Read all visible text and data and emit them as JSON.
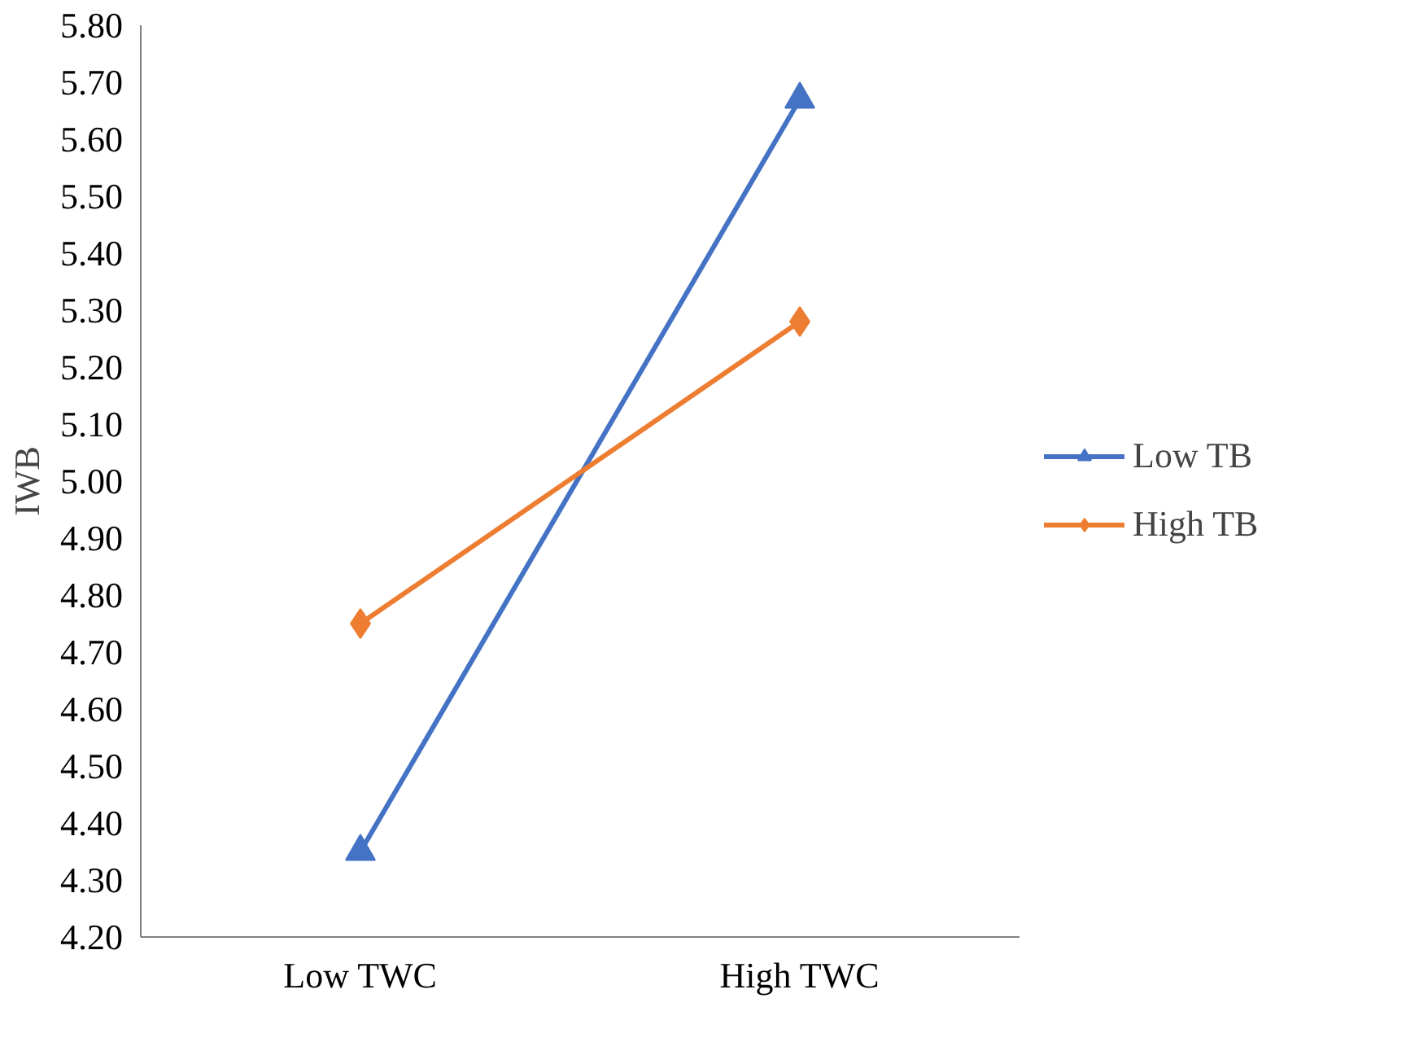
{
  "chart_data": {
    "type": "line",
    "ylabel": "IWB",
    "categories": [
      "Low TWC",
      "High TWC"
    ],
    "series": [
      {
        "name": "Low TB",
        "color": "#4472c4",
        "values": [
          4.35,
          5.67
        ],
        "marker": "triangle"
      },
      {
        "name": "High TB",
        "color": "#ed7d31",
        "values": [
          4.75,
          5.28
        ],
        "marker": "diamond"
      }
    ],
    "ylim": [
      4.2,
      5.8
    ],
    "yticks": [
      {
        "value": 4.2,
        "label": "4.20"
      },
      {
        "value": 4.3,
        "label": "4.30"
      },
      {
        "value": 4.4,
        "label": "4.40"
      },
      {
        "value": 4.5,
        "label": "4.50"
      },
      {
        "value": 4.6,
        "label": "4.60"
      },
      {
        "value": 4.7,
        "label": "4.70"
      },
      {
        "value": 4.8,
        "label": "4.80"
      },
      {
        "value": 4.9,
        "label": "4.90"
      },
      {
        "value": 5.0,
        "label": "5.00"
      },
      {
        "value": 5.1,
        "label": "5.10"
      },
      {
        "value": 5.2,
        "label": "5.20"
      },
      {
        "value": 5.3,
        "label": "5.30"
      },
      {
        "value": 5.4,
        "label": "5.40"
      },
      {
        "value": 5.5,
        "label": "5.50"
      },
      {
        "value": 5.6,
        "label": "5.60"
      },
      {
        "value": 5.7,
        "label": "5.70"
      },
      {
        "value": 5.8,
        "label": "5.80"
      }
    ],
    "grid": false,
    "legend": "right",
    "line_style": "solid"
  }
}
